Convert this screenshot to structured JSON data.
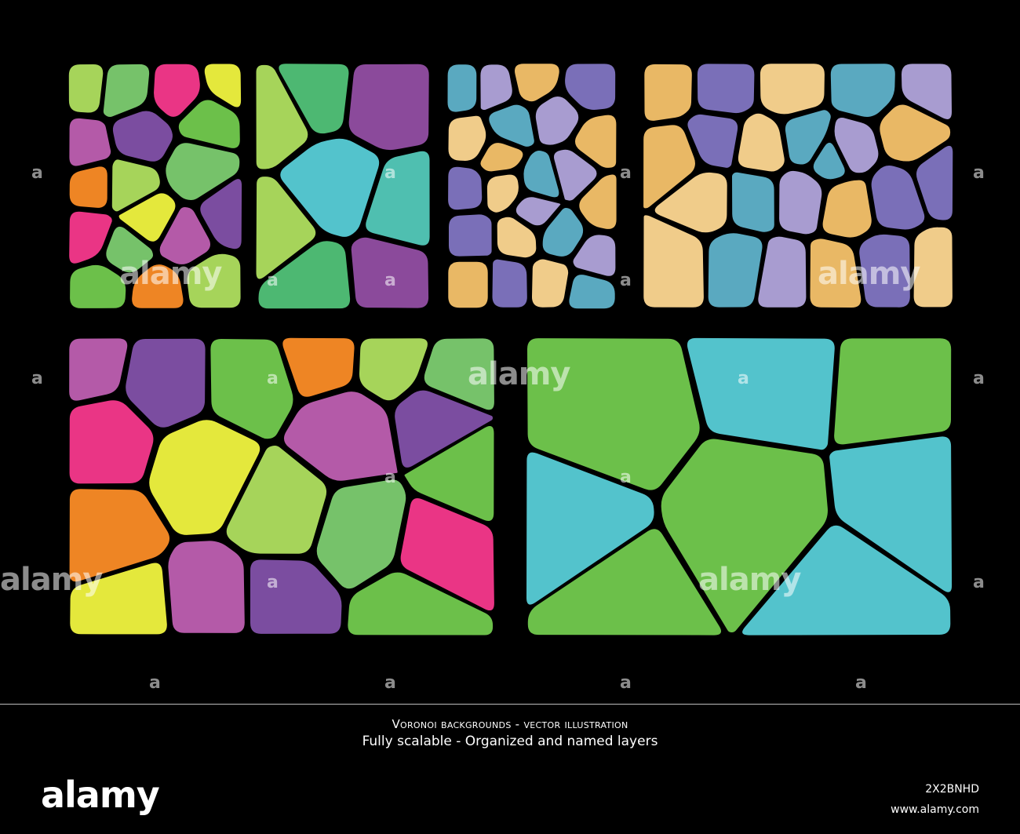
{
  "watermark": {
    "word": "alamy",
    "letter": "a"
  },
  "caption": {
    "line1": "Voronoi backgrounds - vector  illustration",
    "line2": "Fully scalable - Organized and named layers"
  },
  "footer": {
    "logo": "alamy",
    "image_id": "2X2BNHD",
    "url": "www.alamy.com"
  },
  "palette": {
    "lime": "#a6d45a",
    "yellow": "#e4e83c",
    "green": "#6cc04a",
    "mid_green": "#76c26a",
    "magenta": "#b45aa8",
    "orange": "#ee8524",
    "pink": "#ea3585",
    "purple": "#7b4da0",
    "cyan": "#53c3cc",
    "teal": "#4fbfb0",
    "sea_green": "#4db872",
    "violet": "#8b4a9b",
    "lavender": "#a89cd0",
    "periwinkle": "#7a6fb8",
    "blue_teal": "#5aa9c0",
    "sand": "#e9b865",
    "light_sand": "#f0cc8a"
  },
  "panels": [
    {
      "name": "panel-top-1",
      "colors": [
        "lime",
        "yellow",
        "green",
        "mid_green",
        "magenta",
        "orange",
        "pink",
        "purple"
      ]
    },
    {
      "name": "panel-top-2",
      "colors": [
        "cyan",
        "lime",
        "violet",
        "teal",
        "sea_green"
      ]
    },
    {
      "name": "panel-top-3",
      "colors": [
        "lavender",
        "periwinkle",
        "blue_teal",
        "sand",
        "light_sand"
      ]
    },
    {
      "name": "panel-top-4",
      "colors": [
        "lavender",
        "periwinkle",
        "blue_teal",
        "sand",
        "light_sand"
      ]
    },
    {
      "name": "panel-bottom-1",
      "colors": [
        "lime",
        "yellow",
        "green",
        "mid_green",
        "magenta",
        "orange",
        "pink",
        "purple"
      ]
    },
    {
      "name": "panel-bottom-2",
      "colors": [
        "violet",
        "teal",
        "cyan",
        "lime",
        "sea_green",
        "green"
      ]
    }
  ]
}
